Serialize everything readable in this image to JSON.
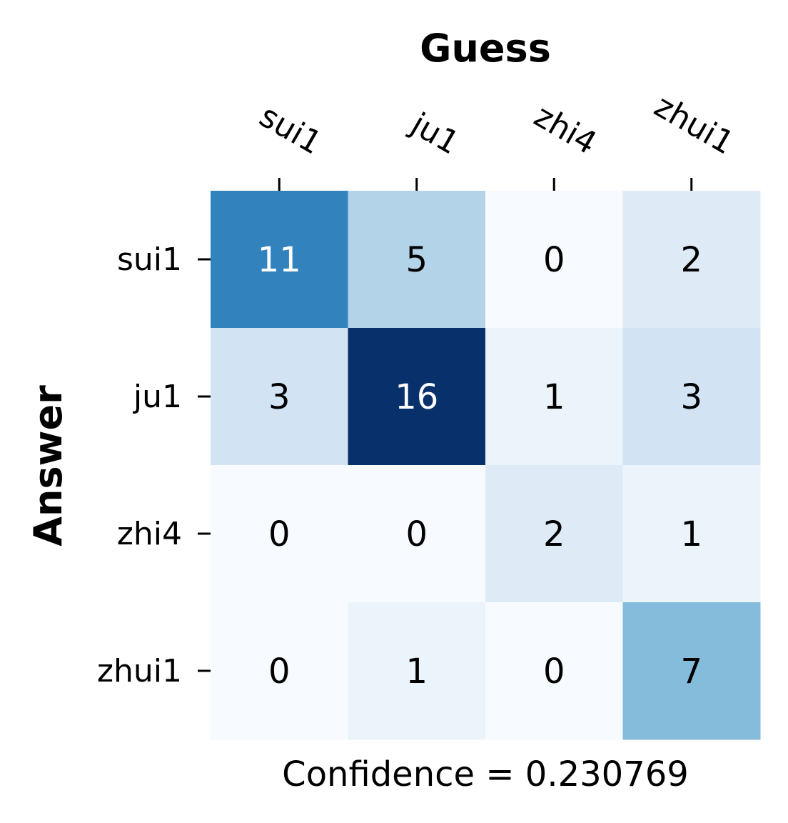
{
  "chart_data": {
    "type": "heatmap",
    "title": "Guess",
    "xlabel": "Guess",
    "ylabel": "Answer",
    "x_categories": [
      "sui1",
      "ju1",
      "zhi4",
      "zhui1"
    ],
    "y_categories": [
      "sui1",
      "ju1",
      "zhi4",
      "zhui1"
    ],
    "values": [
      [
        11,
        5,
        0,
        2
      ],
      [
        3,
        16,
        1,
        3
      ],
      [
        0,
        0,
        2,
        1
      ],
      [
        0,
        1,
        0,
        7
      ]
    ],
    "colormap": "Blues",
    "vmin": 0,
    "vmax": 16,
    "x_axis_position": "top",
    "colorbar": false,
    "caption": "Confidence = 0.230769"
  }
}
